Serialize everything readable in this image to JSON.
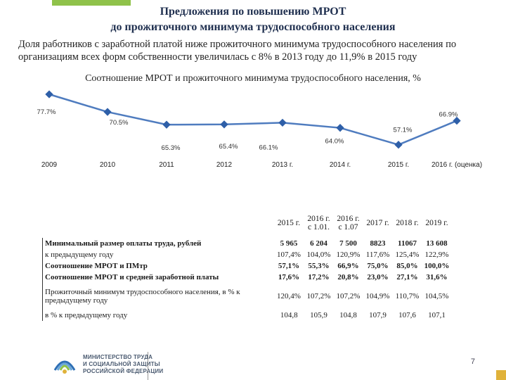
{
  "header": {
    "title_line1": "Предложения по повышению МРОТ",
    "title_line2": "до прожиточного минимума трудоспособного населения",
    "lead": "Доля работников с заработной платой ниже прожиточного минимума трудоспособного населения по организациям всех форм собственности увеличилась с 8% в 2013 году до 11,9% в 2015 году"
  },
  "chart_data": {
    "type": "line",
    "title": "Соотношение МРОТ и прожиточного минимума трудоспособного населения, %",
    "categories": [
      "2009",
      "2010",
      "2011",
      "2012",
      "2013 г.",
      "2014 г.",
      "2015 г.",
      "2016 г. (оценка)"
    ],
    "values": [
      77.7,
      70.5,
      65.3,
      65.4,
      66.1,
      64.0,
      57.1,
      66.9
    ],
    "value_labels": [
      "77.7%",
      "70.5%",
      "65.3%",
      "65.4%",
      "66.1%",
      "64.0%",
      "57.1%",
      "66.9%"
    ],
    "line_color": "#4f7cbf",
    "marker_color": "#2e5fa8",
    "grid": false,
    "legend": "none"
  },
  "table": {
    "headers": [
      "2015 г.",
      "2016 г. с 1.01.",
      "2016 г. с 1.07",
      "2017 г.",
      "2018 г.",
      "2019 г."
    ],
    "rows": [
      {
        "label": "Минимальный размер оплаты труда, рублей",
        "values": [
          "5 965",
          "6 204",
          "7 500",
          "8823",
          "11067",
          "13 608"
        ],
        "bold": true
      },
      {
        "label": "к предыдущему году",
        "values": [
          "107,4%",
          "104,0%",
          "120,9%",
          "117,6%",
          "125,4%",
          "122,9%"
        ],
        "bold": false
      },
      {
        "label": "Соотношение МРОТ и ПМтр",
        "values": [
          "57,1%",
          "55,3%",
          "66,9%",
          "75,0%",
          "85,0%",
          "100,0%"
        ],
        "bold": true
      },
      {
        "label": "Соотношение МРОТ и средней заработной платы",
        "values": [
          "17,6%",
          "17,2%",
          "20,8%",
          "23,0%",
          "27,1%",
          "31,6%"
        ],
        "bold": true
      },
      {
        "label": "Прожиточный минимум трудоспособного населения, в % к предыдущему году",
        "values": [
          "120,4%",
          "107,2%",
          "107,2%",
          "104,9%",
          "110,7%",
          "104,5%"
        ],
        "bold": false
      },
      {
        "label": "в % к предыдущему году",
        "values": [
          "104,8",
          "105,9",
          "104,8",
          "107,9",
          "107,6",
          "107,1"
        ],
        "bold": false
      }
    ]
  },
  "footer": {
    "ministry_line1": "МИНИСТЕРСТВО ТРУДА",
    "ministry_line2": "И СОЦИАЛЬНОЙ ЗАЩИТЫ",
    "ministry_line3": "РОССИЙСКОЙ ФЕДЕРАЦИИ",
    "page_number": "7"
  }
}
